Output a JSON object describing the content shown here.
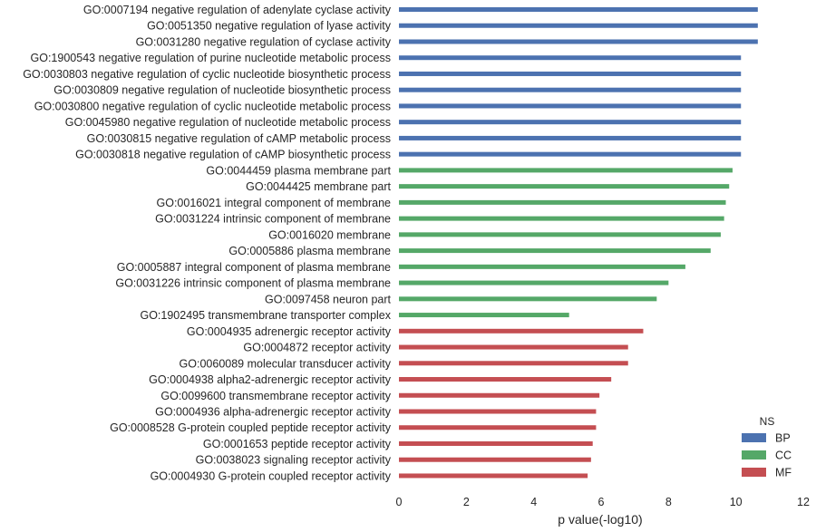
{
  "chart_data": {
    "type": "bar",
    "orientation": "horizontal",
    "xlabel": "p value(-log10)",
    "ylabel": "",
    "xlim": [
      0,
      12
    ],
    "xticks": [
      0,
      2,
      4,
      6,
      8,
      10,
      12
    ],
    "grid": false,
    "legend": {
      "title": "NS",
      "placement": "bottom-right",
      "entries": [
        {
          "name": "BP",
          "color": "#4c72b0"
        },
        {
          "name": "CC",
          "color": "#55a868"
        },
        {
          "name": "MF",
          "color": "#c44e52"
        }
      ]
    },
    "categories": [
      "GO:0007194 negative regulation of adenylate cyclase activity",
      "GO:0051350 negative regulation of lyase activity",
      "GO:0031280 negative regulation of cyclase activity",
      "GO:1900543 negative regulation of purine nucleotide metabolic process",
      "GO:0030803 negative regulation of cyclic nucleotide biosynthetic process",
      "GO:0030809 negative regulation of nucleotide biosynthetic process",
      "GO:0030800 negative regulation of cyclic nucleotide metabolic process",
      "GO:0045980 negative regulation of nucleotide metabolic process",
      "GO:0030815 negative regulation of cAMP metabolic process",
      "GO:0030818 negative regulation of cAMP biosynthetic process",
      "GO:0044459 plasma membrane part",
      "GO:0044425 membrane part",
      "GO:0016021 integral component of membrane",
      "GO:0031224 intrinsic component of membrane",
      "GO:0016020 membrane",
      "GO:0005886 plasma membrane",
      "GO:0005887 integral component of plasma membrane",
      "GO:0031226 intrinsic component of plasma membrane",
      "GO:0097458 neuron part",
      "GO:1902495 transmembrane transporter complex",
      "GO:0004935 adrenergic receptor activity",
      "GO:0004872 receptor activity",
      "GO:0060089 molecular transducer activity",
      "GO:0004938 alpha2-adrenergic receptor activity",
      "GO:0099600 transmembrane receptor activity",
      "GO:0004936 alpha-adrenergic receptor activity",
      "GO:0008528 G-protein coupled peptide receptor activity",
      "GO:0001653 peptide receptor activity",
      "GO:0038023 signaling receptor activity",
      "GO:0004930 G-protein coupled receptor activity"
    ],
    "values": [
      10.65,
      10.65,
      10.65,
      10.15,
      10.15,
      10.15,
      10.15,
      10.15,
      10.15,
      10.15,
      9.9,
      9.8,
      9.7,
      9.65,
      9.55,
      9.25,
      8.5,
      8.0,
      7.65,
      5.05,
      7.25,
      6.8,
      6.8,
      6.3,
      5.95,
      5.85,
      5.85,
      5.75,
      5.7,
      5.6
    ],
    "groups": [
      "BP",
      "BP",
      "BP",
      "BP",
      "BP",
      "BP",
      "BP",
      "BP",
      "BP",
      "BP",
      "CC",
      "CC",
      "CC",
      "CC",
      "CC",
      "CC",
      "CC",
      "CC",
      "CC",
      "CC",
      "MF",
      "MF",
      "MF",
      "MF",
      "MF",
      "MF",
      "MF",
      "MF",
      "MF",
      "MF"
    ]
  }
}
